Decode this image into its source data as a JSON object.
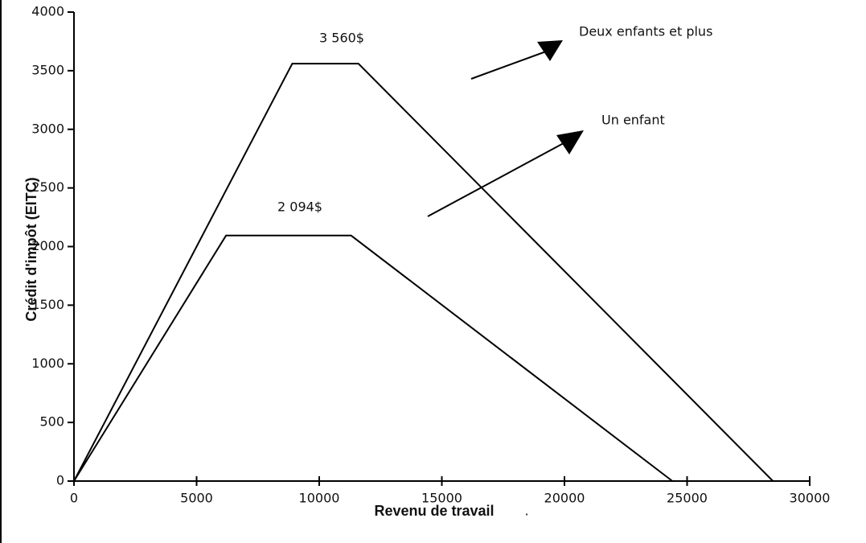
{
  "chart_data": {
    "type": "line",
    "xlabel": "Revenu de travail",
    "ylabel": "Crédit d'impôt (EITC)",
    "xlim": [
      0,
      30000
    ],
    "xticks": [
      0,
      5000,
      10000,
      15000,
      20000,
      25000,
      30000
    ],
    "ylim": [
      0,
      4000
    ],
    "yticks": [
      0,
      500,
      1000,
      1500,
      2000,
      2500,
      3000,
      3500,
      4000
    ],
    "series": [
      {
        "name": "Deux enfants et plus",
        "color": "#000000",
        "x": [
          0,
          8900,
          11600,
          28500
        ],
        "values": [
          0,
          3560,
          3560,
          0
        ]
      },
      {
        "name": "Un enfant",
        "color": "#000000",
        "x": [
          0,
          6200,
          11300,
          24400
        ],
        "values": [
          0,
          2094,
          2094,
          0
        ]
      }
    ],
    "annotations": [
      "3 560$",
      "2 094$",
      "."
    ]
  }
}
